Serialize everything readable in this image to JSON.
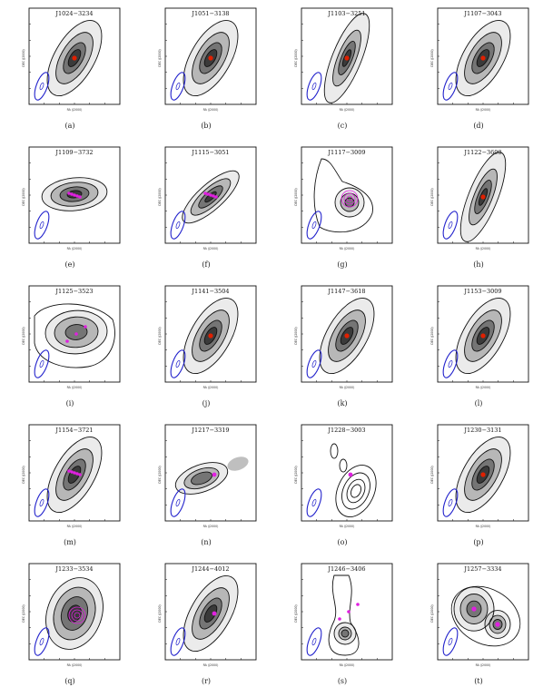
{
  "figure": {
    "colors": {
      "contour": "#111111",
      "beam": "#2222cc",
      "marker_magenta": "#e020e0",
      "marker_red": "#e02000",
      "greyscale": "#333333"
    },
    "panels": [
      {
        "id": "a",
        "caption": "(a)",
        "title": "J1024−3234",
        "ylabel": "DEC (J2000)",
        "xlabel": "RA (J2000)",
        "morph": "compact",
        "marker": "red"
      },
      {
        "id": "b",
        "caption": "(b)",
        "title": "J1051−3138",
        "ylabel": "DEC (J2000)",
        "xlabel": "RA (J2000)",
        "morph": "compact",
        "marker": "red"
      },
      {
        "id": "c",
        "caption": "(c)",
        "title": "J1103−3251",
        "ylabel": "DEC (J2000)",
        "xlabel": "RA (J2000)",
        "morph": "narrow",
        "marker": "red"
      },
      {
        "id": "d",
        "caption": "(d)",
        "title": "J1107−3043",
        "ylabel": "DEC (J2000)",
        "xlabel": "RA (J2000)",
        "morph": "compact",
        "marker": "red"
      },
      {
        "id": "e",
        "caption": "(e)",
        "title": "J1109−3732",
        "ylabel": "DEC (J2000)",
        "xlabel": "RA (J2000)",
        "morph": "horizontal",
        "marker": "magenta-cluster"
      },
      {
        "id": "f",
        "caption": "(f)",
        "title": "J1115−3051",
        "ylabel": "DEC (J2000)",
        "xlabel": "RA (J2000)",
        "morph": "diagonal",
        "marker": "magenta-cluster"
      },
      {
        "id": "g",
        "caption": "(g)",
        "title": "J1117−3009",
        "ylabel": "DEC (J2000)",
        "xlabel": "RA (J2000)",
        "morph": "lobed",
        "marker": "magenta-ring"
      },
      {
        "id": "h",
        "caption": "(h)",
        "title": "J1122−3600",
        "ylabel": "DEC (J2000)",
        "xlabel": "RA (J2000)",
        "morph": "narrow",
        "marker": "red"
      },
      {
        "id": "i",
        "caption": "(i)",
        "title": "J1125−3523",
        "ylabel": "DEC (J2000)",
        "xlabel": "RA (J2000)",
        "morph": "diffuse",
        "marker": "magenta-scatter"
      },
      {
        "id": "j",
        "caption": "(j)",
        "title": "J1141−3504",
        "ylabel": "DEC (J2000)",
        "xlabel": "RA (J2000)",
        "morph": "compact",
        "marker": "red"
      },
      {
        "id": "k",
        "caption": "(k)",
        "title": "J1147−3618",
        "ylabel": "DEC (J2000)",
        "xlabel": "RA (J2000)",
        "morph": "compact",
        "marker": "red"
      },
      {
        "id": "l",
        "caption": "(l)",
        "title": "J1153−3009",
        "ylabel": "DEC (J2000)",
        "xlabel": "RA (J2000)",
        "morph": "compact",
        "marker": "red"
      },
      {
        "id": "m",
        "caption": "(m)",
        "title": "J1154−3721",
        "ylabel": "DEC (J2000)",
        "xlabel": "RA (J2000)",
        "morph": "compact",
        "marker": "magenta-cluster"
      },
      {
        "id": "n",
        "caption": "(n)",
        "title": "J1217−3319",
        "ylabel": "DEC (J2000)",
        "xlabel": "RA (J2000)",
        "morph": "double-dark",
        "marker": "magenta-dot"
      },
      {
        "id": "o",
        "caption": "(o)",
        "title": "J1228−3003",
        "ylabel": "DEC (J2000)",
        "xlabel": "RA (J2000)",
        "morph": "offset",
        "marker": "magenta-dot"
      },
      {
        "id": "p",
        "caption": "(p)",
        "title": "J1230−3131",
        "ylabel": "DEC (J2000)",
        "xlabel": "RA (J2000)",
        "morph": "compact",
        "marker": "red"
      },
      {
        "id": "q",
        "caption": "(q)",
        "title": "J1233−3534",
        "ylabel": "DEC (J2000)",
        "xlabel": "RA (J2000)",
        "morph": "fat",
        "marker": "magenta-ring"
      },
      {
        "id": "r",
        "caption": "(r)",
        "title": "J1244−4012",
        "ylabel": "DEC (J2000)",
        "xlabel": "RA (J2000)",
        "morph": "compact",
        "marker": "magenta-dot"
      },
      {
        "id": "s",
        "caption": "(s)",
        "title": "J1246−3406",
        "ylabel": "DEC (J2000)",
        "xlabel": "RA (J2000)",
        "morph": "vertical",
        "marker": "magenta-scatter"
      },
      {
        "id": "t",
        "caption": "(t)",
        "title": "J1257−3334",
        "ylabel": "DEC (J2000)",
        "xlabel": "RA (J2000)",
        "morph": "double",
        "marker": "magenta-double"
      }
    ]
  }
}
